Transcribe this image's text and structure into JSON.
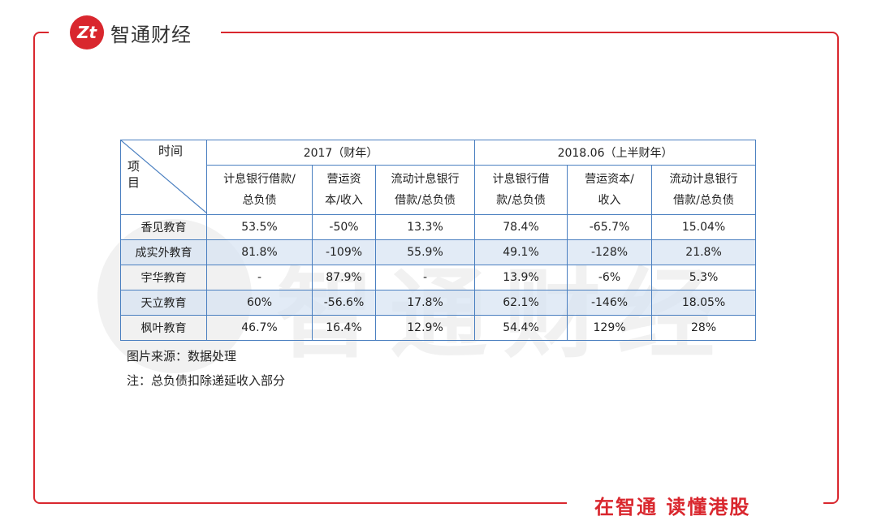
{
  "brand": {
    "logo_text": "Zt",
    "name": "智通财经"
  },
  "slogan": "在智通  读懂港股",
  "watermark": {
    "text": "智通财经"
  },
  "table": {
    "corner_top": "时间",
    "corner_bottom_1": "项",
    "corner_bottom_2": "目",
    "period_2017": "2017（财年）",
    "period_2018": "2018.06（上半财年）",
    "sub_headers": [
      [
        "计息银行借款/",
        "总负债"
      ],
      [
        "营运资",
        "本/收入"
      ],
      [
        "流动计息银行",
        "借款/总负债"
      ],
      [
        "计息银行借",
        "款/总负债"
      ],
      [
        "营运资本/",
        "收入"
      ],
      [
        "流动计息银行",
        "借款/总负债"
      ]
    ],
    "rows": [
      {
        "name": "香见教育",
        "values": [
          "53.5%",
          "-50%",
          "13.3%",
          "78.4%",
          "-65.7%",
          "15.04%"
        ]
      },
      {
        "name": "成实外教育",
        "values": [
          "81.8%",
          "-109%",
          "55.9%",
          "49.1%",
          "-128%",
          "21.8%"
        ]
      },
      {
        "name": "宇华教育",
        "values": [
          "-",
          "87.9%",
          "-",
          "13.9%",
          "-6%",
          "5.3%"
        ]
      },
      {
        "name": "天立教育",
        "values": [
          "60%",
          "-56.6%",
          "17.8%",
          "62.1%",
          "-146%",
          "18.05%"
        ]
      },
      {
        "name": "枫叶教育",
        "values": [
          "46.7%",
          "16.4%",
          "12.9%",
          "54.4%",
          "129%",
          "28%"
        ]
      }
    ]
  },
  "notes": {
    "source": "图片来源：数据处理",
    "note": "注：总负债扣除递延收入部分"
  }
}
